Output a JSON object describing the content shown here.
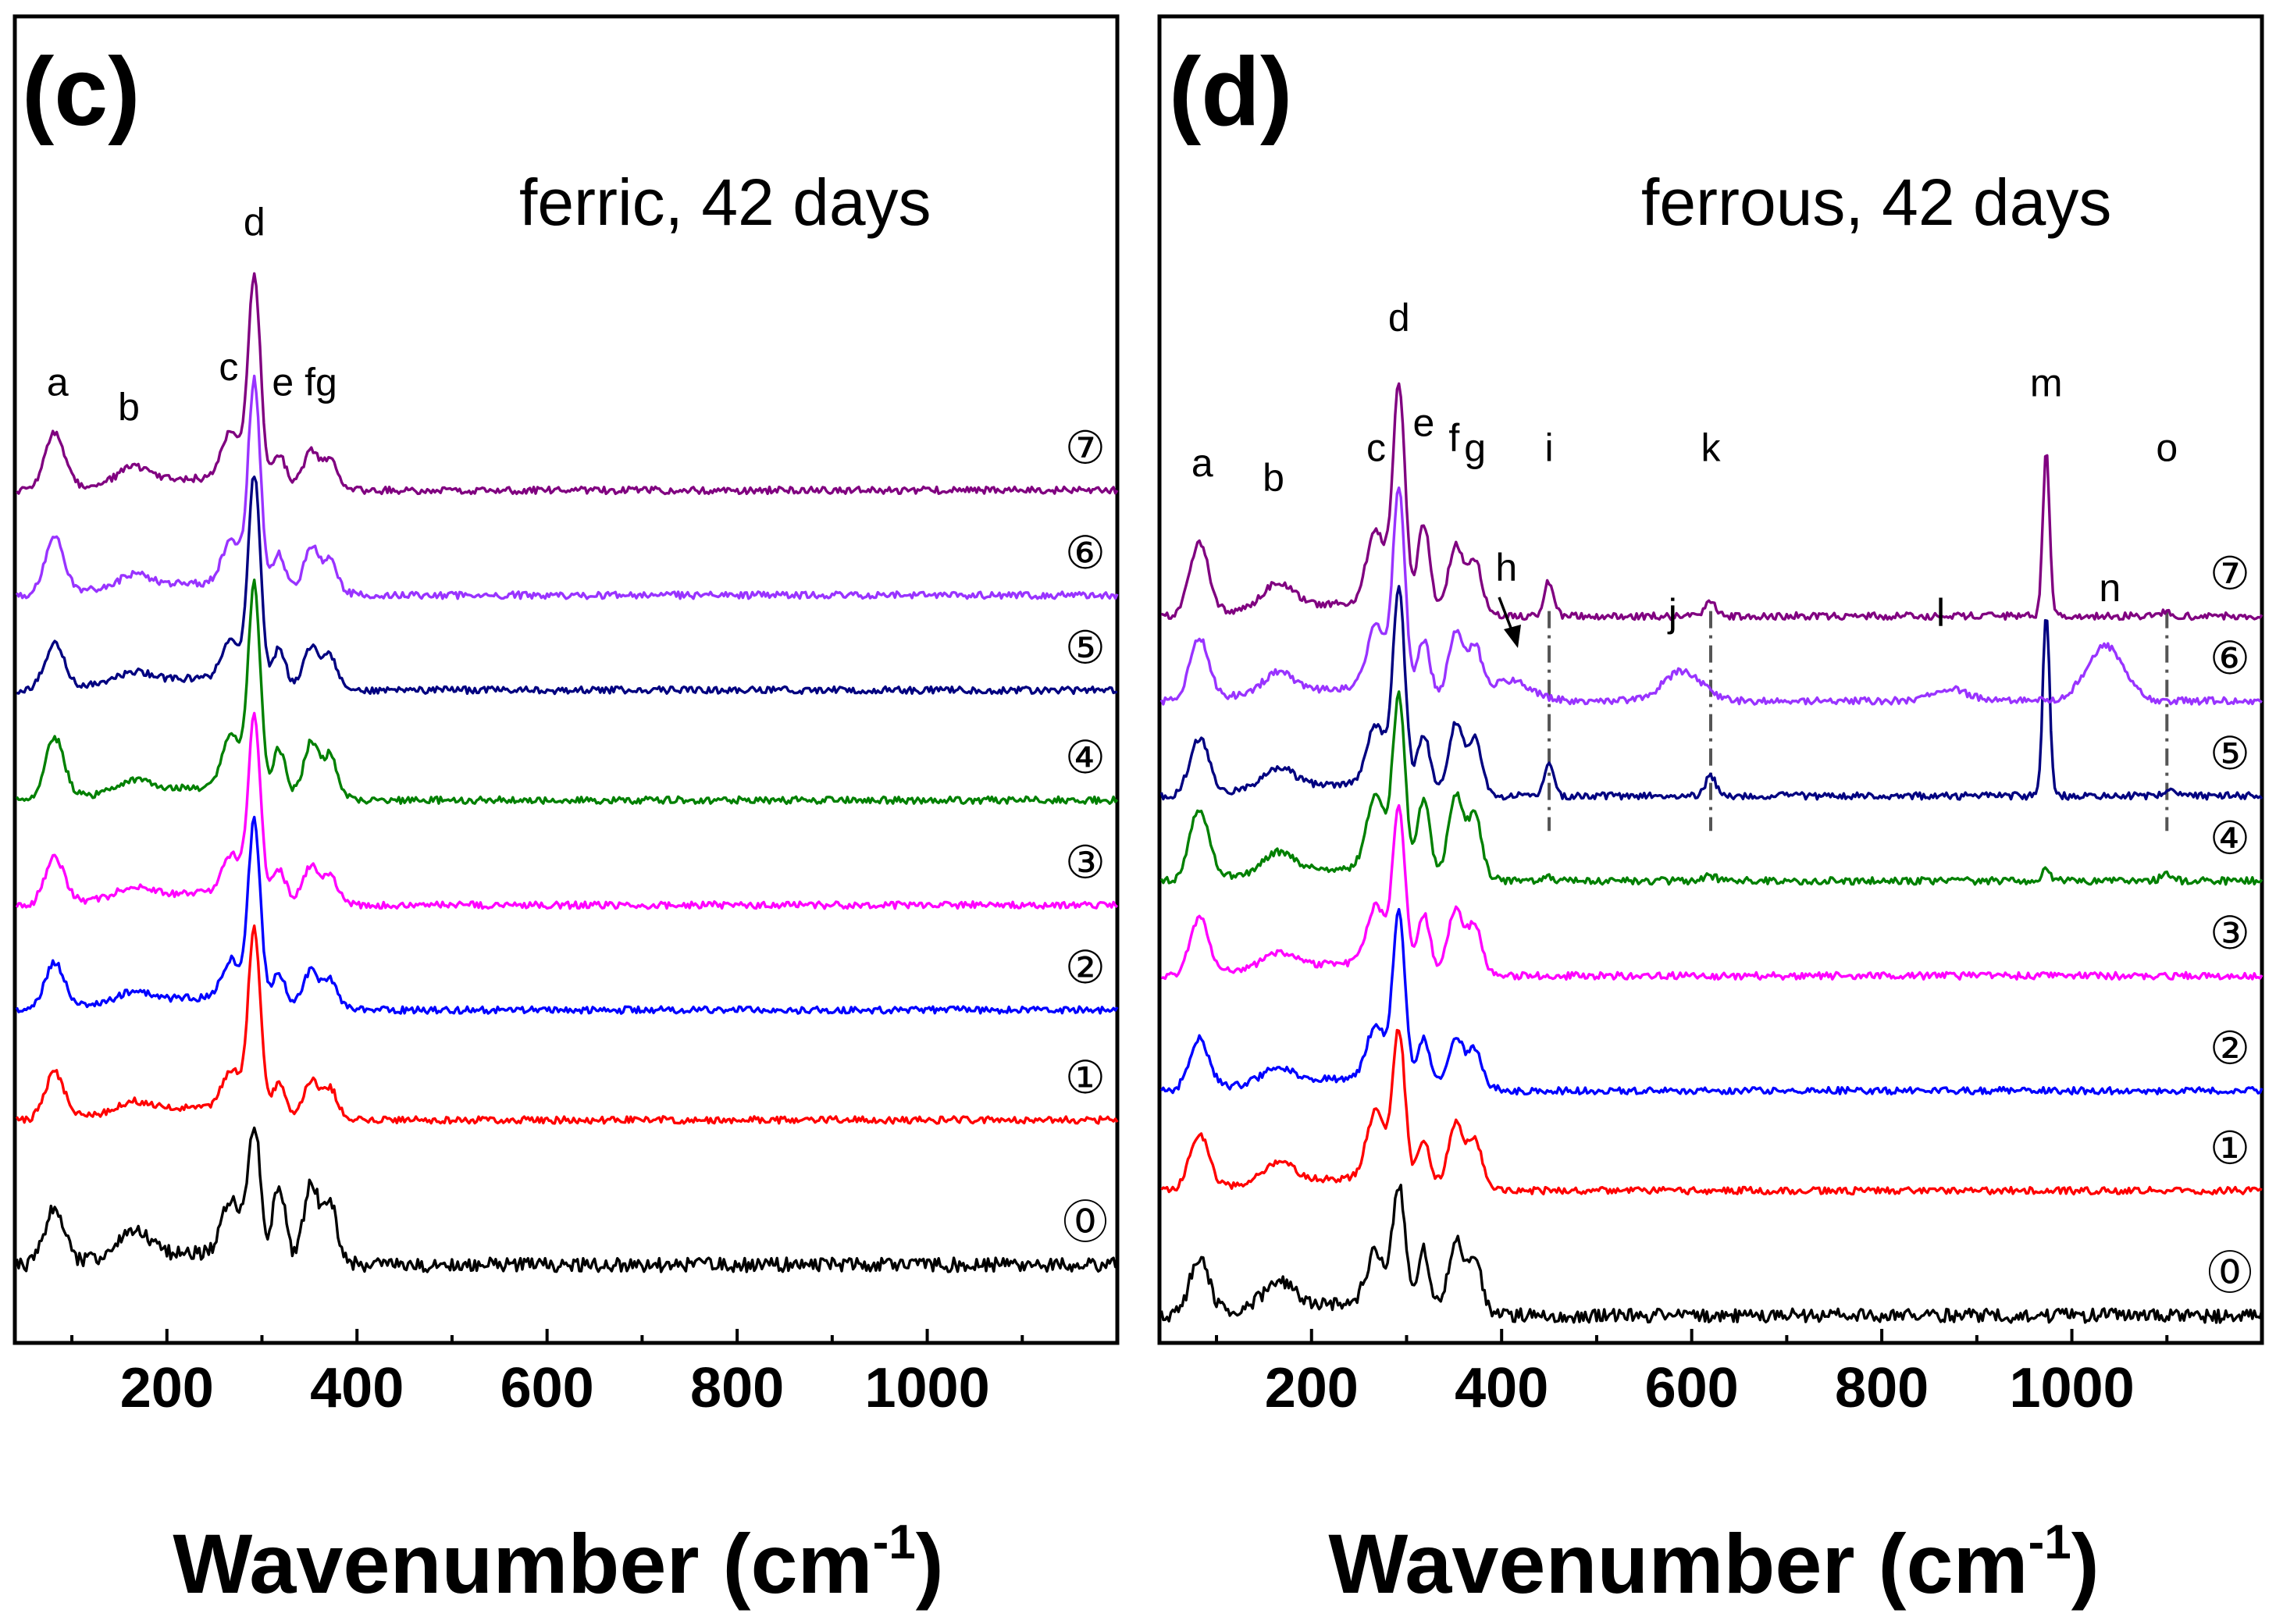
{
  "chart_data": [
    {
      "type": "line",
      "panel_label": "(c)",
      "condition_label": "ferric, 42 days",
      "xlabel": {
        "main": "Wavenumber (cm",
        "sup": "-1",
        "end": ")"
      },
      "xlim": [
        40,
        1200
      ],
      "xticks": [
        200,
        400,
        600,
        800,
        1000
      ],
      "ylabel": "",
      "grid": false,
      "series": [
        {
          "name": "⓪",
          "color": "#000000",
          "offset": 0.0,
          "main_peak": 1.3,
          "amp": {
            "a": 0.55,
            "b": 0.25,
            "c": 0.55,
            "e": 0.75,
            "fg": 0.85
          }
        },
        {
          "name": "①",
          "color": "#ff0000",
          "offset": 1.45,
          "main_peak": 1.8,
          "amp": {
            "a": 0.45,
            "b": 0.1,
            "c": 0.4,
            "e": 0.3,
            "fg": 0.4
          }
        },
        {
          "name": "②",
          "color": "#0000ff",
          "offset": 2.55,
          "main_peak": 1.8,
          "amp": {
            "a": 0.45,
            "b": 0.1,
            "c": 0.4,
            "e": 0.3,
            "fg": 0.4
          }
        },
        {
          "name": "③",
          "color": "#ff00ff",
          "offset": 3.6,
          "main_peak": 1.8,
          "amp": {
            "a": 0.45,
            "b": 0.1,
            "c": 0.4,
            "e": 0.3,
            "fg": 0.4
          }
        },
        {
          "name": "④",
          "color": "#008000",
          "offset": 4.65,
          "main_peak": 2.05,
          "amp": {
            "a": 0.6,
            "b": 0.12,
            "c": 0.55,
            "e": 0.45,
            "fg": 0.6
          }
        },
        {
          "name": "⑤",
          "color": "#000080",
          "offset": 5.75,
          "main_peak": 2.05,
          "amp": {
            "a": 0.45,
            "b": 0.1,
            "c": 0.4,
            "e": 0.35,
            "fg": 0.45
          }
        },
        {
          "name": "⑥",
          "color": "#9933ff",
          "offset": 6.7,
          "main_peak": 2.05,
          "amp": {
            "a": 0.55,
            "b": 0.12,
            "c": 0.45,
            "e": 0.35,
            "fg": 0.5
          }
        },
        {
          "name": "⑦",
          "color": "#800080",
          "offset": 7.75,
          "main_peak": 2.05,
          "amp": {
            "a": 0.55,
            "b": 0.15,
            "c": 0.5,
            "e": 0.3,
            "fg": 0.4
          }
        }
      ],
      "peak_labels": [
        {
          "text": "a",
          "x": 85,
          "y": 8.7
        },
        {
          "text": "b",
          "x": 160,
          "y": 8.45
        },
        {
          "text": "c",
          "x": 265,
          "y": 8.85
        },
        {
          "text": "d",
          "x": 292,
          "y": 10.3
        },
        {
          "text": "e",
          "x": 322,
          "y": 8.7
        },
        {
          "text": "fg",
          "x": 362,
          "y": 8.7
        }
      ]
    },
    {
      "type": "line",
      "panel_label": "(d)",
      "condition_label": "ferrous, 42 days",
      "xlabel": {
        "main": "Wavenumber (cm",
        "sup": "-1",
        "end": ")"
      },
      "xlim": [
        40,
        1200
      ],
      "xticks": [
        200,
        400,
        600,
        800,
        1000
      ],
      "ylabel": "",
      "grid": false,
      "series": [
        {
          "name": "⓪",
          "color": "#000000",
          "offset": 0.0,
          "main_peak": 1.2,
          "amp": {
            "a": 0.55,
            "b": 0.25,
            "c": 0.55,
            "e": 0.6,
            "fg": 0.8
          }
        },
        {
          "name": "①",
          "color": "#ff0000",
          "offset": 1.25,
          "main_peak": 1.5,
          "amp": {
            "a": 0.55,
            "b": 0.2,
            "c": 0.7,
            "e": 0.45,
            "fg": 0.7
          }
        },
        {
          "name": "②",
          "color": "#0000ff",
          "offset": 2.25,
          "main_peak": 1.7,
          "amp": {
            "a": 0.5,
            "b": 0.15,
            "c": 0.55,
            "e": 0.45,
            "fg": 0.55
          }
        },
        {
          "name": "③",
          "color": "#ff00ff",
          "offset": 3.4,
          "main_peak": 1.6,
          "amp": {
            "a": 0.55,
            "b": 0.15,
            "c": 0.6,
            "e": 0.55,
            "fg": 0.7
          }
        },
        {
          "name": "④",
          "color": "#008000",
          "offset": 4.35,
          "main_peak": 1.75,
          "amp": {
            "a": 0.7,
            "b": 0.2,
            "c": 0.75,
            "e": 0.75,
            "fg": 0.9
          },
          "extra": {
            "i": 0.05,
            "k": 0.05,
            "m": 0.15,
            "o": 0.08
          }
        },
        {
          "name": "⑤",
          "color": "#000080",
          "offset": 5.2,
          "main_peak": 1.95,
          "amp": {
            "a": 0.55,
            "b": 0.2,
            "c": 0.6,
            "e": 0.55,
            "fg": 0.75
          },
          "extra": {
            "i": 0.3,
            "k": 0.2,
            "m": 1.85,
            "o": 0.06
          }
        },
        {
          "name": "⑥",
          "color": "#9933ff",
          "offset": 6.15,
          "main_peak": 2.0,
          "amp": {
            "a": 0.6,
            "b": 0.2,
            "c": 0.65,
            "e": 0.55,
            "fg": 0.7
          },
          "extra": {
            "h": 0.2,
            "j": 0.3,
            "l": 0.12,
            "n": 0.55
          }
        },
        {
          "name": "⑦",
          "color": "#800080",
          "offset": 7.0,
          "main_peak": 2.2,
          "amp": {
            "a": 0.7,
            "b": 0.25,
            "c": 0.75,
            "e": 0.85,
            "fg": 0.75
          },
          "extra": {
            "i": 0.35,
            "k": 0.15,
            "m": 1.65,
            "o": 0.05
          }
        }
      ],
      "peak_labels": [
        {
          "text": "a",
          "x": 85,
          "y": 8.4
        },
        {
          "text": "b",
          "x": 160,
          "y": 8.25
        },
        {
          "text": "c",
          "x": 268,
          "y": 8.55
        },
        {
          "text": "d",
          "x": 292,
          "y": 9.85
        },
        {
          "text": "e",
          "x": 318,
          "y": 8.8
        },
        {
          "text": "f",
          "x": 350,
          "y": 8.65
        },
        {
          "text": "g",
          "x": 372,
          "y": 8.55
        },
        {
          "text": "i",
          "x": 450,
          "y": 8.55
        },
        {
          "text": "k",
          "x": 620,
          "y": 8.55
        },
        {
          "text": "m",
          "x": 973,
          "y": 9.2
        },
        {
          "text": "o",
          "x": 1100,
          "y": 8.55
        },
        {
          "text": "h",
          "x": 405,
          "y": 7.35
        },
        {
          "text": "j",
          "x": 580,
          "y": 6.9
        },
        {
          "text": "l",
          "x": 862,
          "y": 6.9
        },
        {
          "text": "n",
          "x": 1040,
          "y": 7.15
        }
      ],
      "guide_lines": [
        450,
        620,
        1100
      ]
    }
  ]
}
